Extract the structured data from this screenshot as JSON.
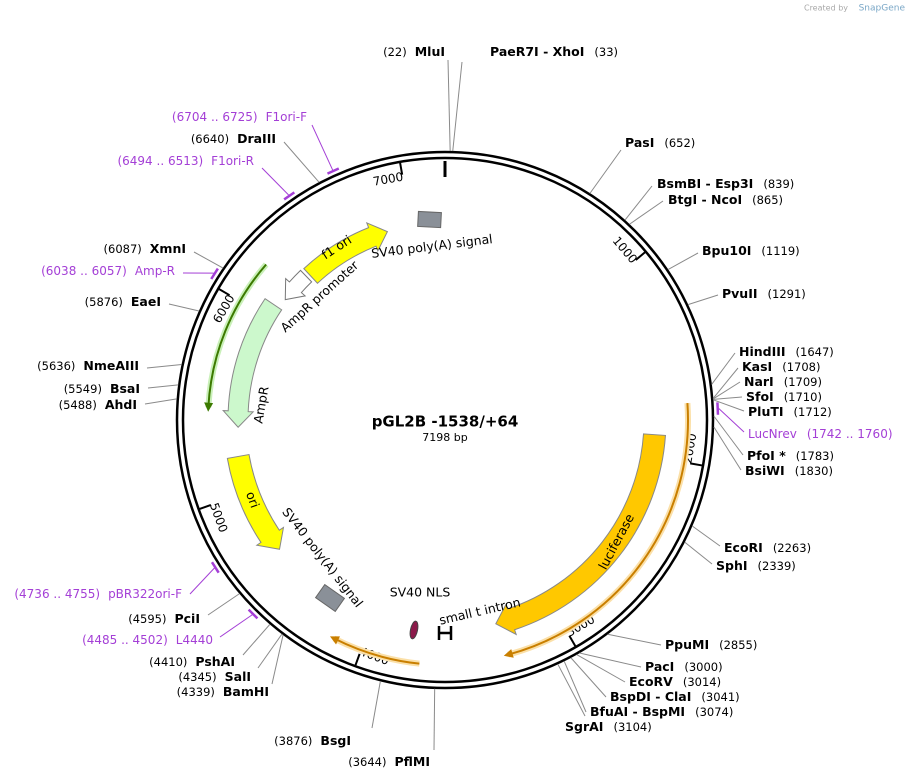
{
  "credit": {
    "prefix": "Created by",
    "brand": "SnapGene"
  },
  "plasmid": {
    "name": "pGL2B -1538/+64",
    "length": "7198 bp"
  },
  "ticks": [
    1000,
    2000,
    3000,
    4000,
    5000,
    6000,
    7000
  ],
  "features": [
    "f1 ori",
    "SV40 poly(A) signal",
    "AmpR promoter",
    "AmpR",
    "ori",
    "SV40 poly(A) signal",
    "SV40 NLS",
    "small t intron",
    "luciferase"
  ],
  "enzymes": [
    {
      "name": "MluI",
      "position": "(22)"
    },
    {
      "name": "PaeR7I - XhoI",
      "position": "(33)"
    },
    {
      "name": "PasI",
      "position": "(652)"
    },
    {
      "name": "BsmBI - Esp3I",
      "position": "(839)"
    },
    {
      "name": "BtgI - NcoI",
      "position": "(865)"
    },
    {
      "name": "Bpu10I",
      "position": "(1119)"
    },
    {
      "name": "PvuII",
      "position": "(1291)"
    },
    {
      "name": "HindIII",
      "position": "(1647)"
    },
    {
      "name": "KasI",
      "position": "(1708)"
    },
    {
      "name": "NarI",
      "position": "(1709)"
    },
    {
      "name": "SfoI",
      "position": "(1710)"
    },
    {
      "name": "PluTI",
      "position": "(1712)"
    },
    {
      "name": "PfoI *",
      "position": "(1783)"
    },
    {
      "name": "BsiWI",
      "position": "(1830)"
    },
    {
      "name": "EcoRI",
      "position": "(2263)"
    },
    {
      "name": "SphI",
      "position": "(2339)"
    },
    {
      "name": "PpuMI",
      "position": "(2855)"
    },
    {
      "name": "PacI",
      "position": "(3000)"
    },
    {
      "name": "EcoRV",
      "position": "(3014)"
    },
    {
      "name": "BspDI - ClaI",
      "position": "(3041)"
    },
    {
      "name": "BfuAI - BspMI",
      "position": "(3074)"
    },
    {
      "name": "SgrAI",
      "position": "(3104)"
    },
    {
      "name": "PflMI",
      "position": "(3644)"
    },
    {
      "name": "BsgI",
      "position": "(3876)"
    },
    {
      "name": "BamHI",
      "position": "(4339)"
    },
    {
      "name": "SalI",
      "position": "(4345)"
    },
    {
      "name": "PshAI",
      "position": "(4410)"
    },
    {
      "name": "PciI",
      "position": "(4595)"
    },
    {
      "name": "AhdI",
      "position": "(5488)"
    },
    {
      "name": "BsaI",
      "position": "(5549)"
    },
    {
      "name": "NmeAIII",
      "position": "(5636)"
    },
    {
      "name": "EaeI",
      "position": "(5876)"
    },
    {
      "name": "XmnI",
      "position": "(6087)"
    },
    {
      "name": "DraIII",
      "position": "(6640)"
    }
  ],
  "primers": [
    {
      "name": "F1ori-F",
      "range": "(6704 .. 6725)"
    },
    {
      "name": "F1ori-R",
      "range": "(6494 .. 6513)"
    },
    {
      "name": "Amp-R",
      "range": "(6038 .. 6057)"
    },
    {
      "name": "LucNrev",
      "range": "(1742 .. 1760)"
    },
    {
      "name": "pBR322ori-F",
      "range": "(4736 .. 4755)"
    },
    {
      "name": "L4440",
      "range": "(4485 .. 4502)"
    }
  ]
}
